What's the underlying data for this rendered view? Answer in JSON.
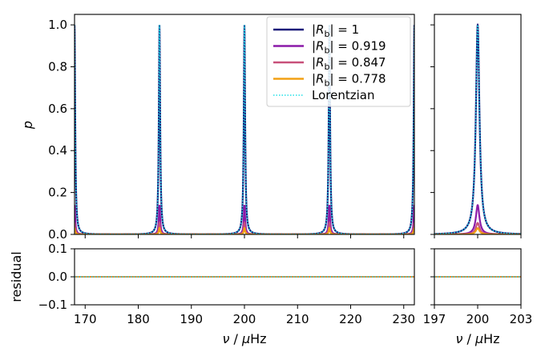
{
  "chart_data": {
    "type": "line",
    "legend": {
      "placement": "top-right",
      "entries": [
        {
          "name": "|R_b| = 1",
          "rb": "1",
          "color": "#1a1a7a",
          "style": "solid"
        },
        {
          "name": "|R_b| = 0.919",
          "rb": "0.919",
          "color": "#8b1aa8",
          "style": "solid"
        },
        {
          "name": "|R_b| = 0.847",
          "rb": "0.847",
          "color": "#c8507a",
          "style": "solid"
        },
        {
          "name": "|R_b| = 0.778",
          "rb": "0.778",
          "color": "#f2a014",
          "style": "solid"
        },
        {
          "name": "Lorentzian",
          "rb": "",
          "color": "#22e0e8",
          "style": "dotted"
        }
      ]
    },
    "panels": {
      "main_left": {
        "xlim": [
          168,
          232
        ],
        "ylim": [
          0,
          1.05
        ],
        "xticks": [
          "170",
          "180",
          "190",
          "200",
          "210",
          "220",
          "230"
        ],
        "yticks": [
          "0.0",
          "0.2",
          "0.4",
          "0.6",
          "0.8",
          "1.0"
        ],
        "ylabel": "p",
        "peaks": [
          168,
          184,
          200,
          216,
          232
        ],
        "peak_heights": {
          "|R_b| = 1": 1.0,
          "|R_b| = 0.919": 0.14,
          "|R_b| = 0.847": 0.055,
          "|R_b| = 0.778": 0.03,
          "Lorentzian": 1.0
        }
      },
      "main_right": {
        "xlim": [
          197,
          203
        ],
        "ylim": [
          0,
          1.05
        ],
        "peaks": [
          200
        ],
        "peak_heights": {
          "|R_b| = 1": 1.0,
          "|R_b| = 0.919": 0.14,
          "|R_b| = 0.847": 0.055,
          "|R_b| = 0.778": 0.03,
          "Lorentzian": 1.0
        }
      },
      "residual_left": {
        "xlim": [
          168,
          232
        ],
        "ylim": [
          -0.1,
          0.1
        ],
        "yticks": [
          "-0.1",
          "0.0",
          "0.1"
        ],
        "xticks": [
          "170",
          "180",
          "190",
          "200",
          "210",
          "220",
          "230"
        ],
        "ylabel": "residual",
        "xlabel": "ν / μHz",
        "residual": 0.0
      },
      "residual_right": {
        "xlim": [
          197,
          203
        ],
        "ylim": [
          -0.1,
          0.1
        ],
        "xticks": [
          "197",
          "200",
          "203"
        ],
        "xlabel": "ν / μHz",
        "residual": 0.0
      }
    },
    "peak_width": 0.15
  }
}
